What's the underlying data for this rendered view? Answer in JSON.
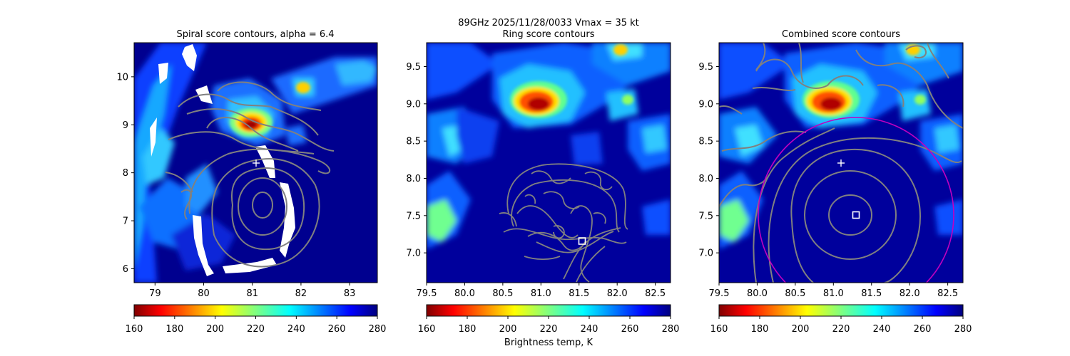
{
  "figure": {
    "suptitle_line1": "89GHz  2025/11/28/0033    Vmax = 35 kt",
    "colorbar_label": "Brightness temp, K"
  },
  "chart_data": [
    {
      "type": "heatmap",
      "title": "Spiral score contours, alpha =  6.4",
      "xlim": [
        78.57,
        83.57
      ],
      "ylim": [
        5.71,
        10.71
      ],
      "xticks": [
        "79",
        "80",
        "81",
        "82",
        "83"
      ],
      "yticks": [
        "6",
        "7",
        "8",
        "9",
        "10"
      ],
      "colormap": "jet",
      "colorbar": {
        "range": [
          160,
          280
        ],
        "ticks": [
          "160",
          "180",
          "200",
          "220",
          "240",
          "260",
          "280"
        ]
      },
      "cold_cores": [
        {
          "x": 81.0,
          "y": 9.0,
          "tb": 165
        }
      ],
      "markers": [
        {
          "symbol": "plus",
          "x": 81.07,
          "y": 8.2
        }
      ],
      "contour_center": {
        "x": 81.2,
        "y": 7.3
      },
      "contour_color": "#808080"
    },
    {
      "type": "heatmap",
      "title": "Ring score contours",
      "xlim": [
        79.5,
        82.7
      ],
      "ylim": [
        6.6,
        9.82
      ],
      "xticks": [
        "79.5",
        "80.0",
        "80.5",
        "81.0",
        "81.5",
        "82.0",
        "82.5"
      ],
      "yticks": [
        "7.0",
        "7.5",
        "8.0",
        "8.5",
        "9.0",
        "9.5"
      ],
      "colormap": "jet",
      "colorbar": {
        "range": [
          160,
          280
        ],
        "ticks": [
          "160",
          "180",
          "200",
          "220",
          "240",
          "260",
          "280"
        ]
      },
      "cold_cores": [
        {
          "x": 81.0,
          "y": 8.95,
          "tb": 165
        }
      ],
      "markers": [
        {
          "symbol": "square",
          "x": 81.55,
          "y": 7.15
        }
      ],
      "contour_color": "#808080"
    },
    {
      "type": "heatmap",
      "title": "Combined score contours",
      "xlim": [
        79.5,
        82.7
      ],
      "ylim": [
        6.6,
        9.82
      ],
      "xticks": [
        "79.5",
        "80.0",
        "80.5",
        "81.0",
        "81.5",
        "82.0",
        "82.5"
      ],
      "yticks": [
        "7.0",
        "7.5",
        "8.0",
        "8.5",
        "9.0",
        "9.5"
      ],
      "colormap": "jet",
      "colorbar": {
        "range": [
          160,
          280
        ],
        "ticks": [
          "160",
          "180",
          "200",
          "220",
          "240",
          "260",
          "280"
        ]
      },
      "cold_cores": [
        {
          "x": 81.0,
          "y": 8.95,
          "tb": 165
        }
      ],
      "markers": [
        {
          "symbol": "plus",
          "x": 81.07,
          "y": 8.2
        },
        {
          "symbol": "square",
          "x": 81.3,
          "y": 7.5
        }
      ],
      "circle": {
        "center_x": 81.05,
        "center_y": 7.55,
        "radius_deg": 1.28,
        "color": "#c000c0"
      },
      "contour_center": {
        "x": 81.15,
        "y": 7.5
      },
      "contour_color": "#808080"
    }
  ]
}
